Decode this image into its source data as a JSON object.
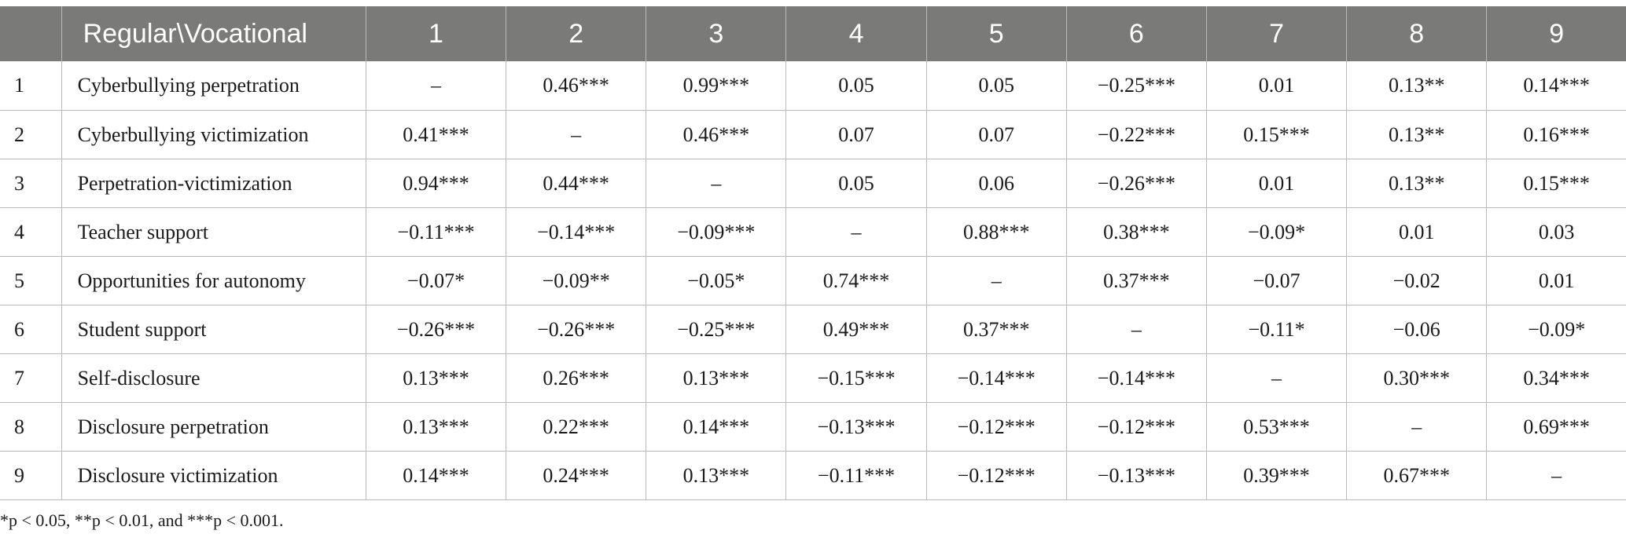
{
  "table": {
    "header": {
      "corner": "",
      "label": "Regular\\Vocational",
      "columns": [
        "1",
        "2",
        "3",
        "4",
        "5",
        "6",
        "7",
        "8",
        "9"
      ]
    },
    "rows": [
      {
        "index": "1",
        "label": "Cyberbullying perpetration",
        "cells": [
          "–",
          "0.46***",
          "0.99***",
          "0.05",
          "0.05",
          "−0.25***",
          "0.01",
          "0.13**",
          "0.14***"
        ]
      },
      {
        "index": "2",
        "label": "Cyberbullying victimization",
        "cells": [
          "0.41***",
          "–",
          "0.46***",
          "0.07",
          "0.07",
          "−0.22***",
          "0.15***",
          "0.13**",
          "0.16***"
        ]
      },
      {
        "index": "3",
        "label": "Perpetration-victimization",
        "cells": [
          "0.94***",
          "0.44***",
          "–",
          "0.05",
          "0.06",
          "−0.26***",
          "0.01",
          "0.13**",
          "0.15***"
        ]
      },
      {
        "index": "4",
        "label": "Teacher support",
        "cells": [
          "−0.11***",
          "−0.14***",
          "−0.09***",
          "–",
          "0.88***",
          "0.38***",
          "−0.09*",
          "0.01",
          "0.03"
        ]
      },
      {
        "index": "5",
        "label": "Opportunities for autonomy",
        "cells": [
          "−0.07*",
          "−0.09**",
          "−0.05*",
          "0.74***",
          "–",
          "0.37***",
          "−0.07",
          "−0.02",
          "0.01"
        ]
      },
      {
        "index": "6",
        "label": "Student support",
        "cells": [
          "−0.26***",
          "−0.26***",
          "−0.25***",
          "0.49***",
          "0.37***",
          "–",
          "−0.11*",
          "−0.06",
          "−0.09*"
        ]
      },
      {
        "index": "7",
        "label": "Self-disclosure",
        "cells": [
          "0.13***",
          "0.26***",
          "0.13***",
          "−0.15***",
          "−0.14***",
          "−0.14***",
          "–",
          "0.30***",
          "0.34***"
        ]
      },
      {
        "index": "8",
        "label": "Disclosure perpetration",
        "cells": [
          "0.13***",
          "0.22***",
          "0.14***",
          "−0.13***",
          "−0.12***",
          "−0.12***",
          "0.53***",
          "–",
          "0.69***"
        ]
      },
      {
        "index": "9",
        "label": "Disclosure victimization",
        "cells": [
          "0.14***",
          "0.24***",
          "0.13***",
          "−0.11***",
          "−0.12***",
          "−0.13***",
          "0.39***",
          "0.67***",
          "–"
        ]
      }
    ]
  },
  "footnote": "*p < 0.05, **p < 0.01, and ***p < 0.001.",
  "colors": {
    "header_background": "#7a7a78",
    "header_text": "#ffffff",
    "grid_lines": "#b9b9b9"
  }
}
